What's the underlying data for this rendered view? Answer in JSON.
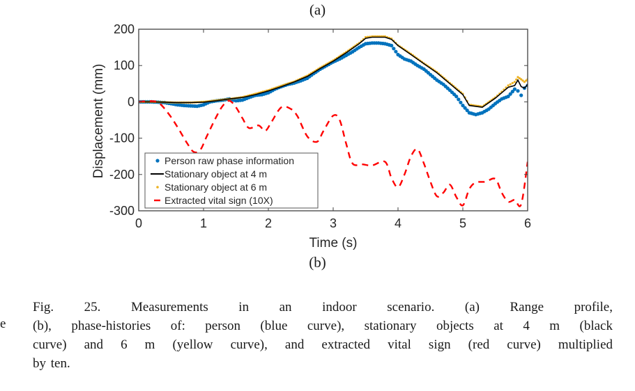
{
  "subfigure_labels": {
    "top": "(a)",
    "bottom": "(b)"
  },
  "stray_text": "e",
  "caption": {
    "lines": [
      "Fig. 25.      Measurements in an indoor scenario. (a) Range profile,",
      "(b), phase-histories of: person (blue curve), stationary objects at 4 m (black",
      "curve) and 6 m (yellow curve), and extracted vital sign (red curve) multiplied",
      "by ten."
    ]
  },
  "colors": {
    "person": "#0072BD",
    "stationary_4m": "#000000",
    "stationary_6m": "#EDB120",
    "vital_sign": "#FF0000",
    "axis": "#404040",
    "text": "#262626"
  },
  "chart_data": {
    "type": "line",
    "title": "",
    "xlabel": "Time (s)",
    "ylabel": "Displacement (mm)",
    "xlim": [
      0,
      6
    ],
    "ylim": [
      -300,
      200
    ],
    "xticks": [
      0,
      1,
      2,
      3,
      4,
      5,
      6
    ],
    "yticks": [
      -300,
      -200,
      -100,
      0,
      100,
      200
    ],
    "xtick_labels": [
      "0",
      "1",
      "2",
      "3",
      "4",
      "5",
      "6"
    ],
    "ytick_labels": [
      "-300",
      "-200",
      "-100",
      "0",
      "100",
      "200"
    ],
    "grid": false,
    "legend_position": "bottom-left",
    "series": [
      {
        "name": "Person raw phase information",
        "style": "dots",
        "color_key": "person",
        "x": [
          0,
          0.2,
          0.4,
          0.5,
          0.6,
          0.7,
          0.8,
          0.9,
          1.0,
          1.1,
          1.2,
          1.3,
          1.4,
          1.5,
          1.6,
          1.7,
          1.8,
          1.9,
          2.0,
          2.1,
          2.2,
          2.3,
          2.4,
          2.5,
          2.6,
          2.7,
          2.8,
          2.9,
          3.0,
          3.1,
          3.2,
          3.3,
          3.4,
          3.5,
          3.6,
          3.7,
          3.8,
          3.9,
          4.0,
          4.1,
          4.2,
          4.3,
          4.4,
          4.5,
          4.6,
          4.7,
          4.8,
          4.9,
          5.0,
          5.1,
          5.2,
          5.3,
          5.4,
          5.5,
          5.6,
          5.7,
          5.8,
          5.85,
          5.9,
          5.95,
          6.0
        ],
        "y": [
          0,
          0,
          -2,
          -5,
          -8,
          -10,
          -11,
          -12,
          -8,
          0,
          3,
          5,
          8,
          3,
          5,
          12,
          18,
          20,
          25,
          35,
          42,
          48,
          52,
          58,
          65,
          78,
          90,
          100,
          110,
          118,
          128,
          138,
          150,
          160,
          162,
          162,
          160,
          155,
          130,
          118,
          112,
          100,
          90,
          75,
          60,
          48,
          32,
          15,
          -10,
          -30,
          -35,
          -30,
          -20,
          -5,
          8,
          15,
          35,
          30,
          18,
          38,
          45
        ]
      },
      {
        "name": "Stationary object at 4 m",
        "style": "solid",
        "color_key": "stationary_4m",
        "x": [
          0,
          0.2,
          0.4,
          0.6,
          0.8,
          1.0,
          1.2,
          1.4,
          1.6,
          1.8,
          2.0,
          2.2,
          2.4,
          2.6,
          2.8,
          3.0,
          3.2,
          3.4,
          3.5,
          3.6,
          3.8,
          3.9,
          4.0,
          4.2,
          4.4,
          4.6,
          4.8,
          5.0,
          5.1,
          5.3,
          5.5,
          5.6,
          5.7,
          5.8,
          5.85,
          5.9,
          5.95,
          6.0
        ],
        "y": [
          0,
          0,
          -1,
          -2,
          -2,
          -1,
          3,
          8,
          12,
          20,
          30,
          42,
          55,
          70,
          92,
          112,
          135,
          160,
          175,
          178,
          178,
          172,
          155,
          130,
          105,
          80,
          50,
          20,
          -10,
          -15,
          10,
          25,
          40,
          45,
          60,
          42,
          38,
          48
        ]
      },
      {
        "name": "Stationary object at 6 m",
        "style": "dots",
        "color_key": "stationary_6m",
        "x": [
          0,
          0.2,
          0.4,
          0.6,
          0.8,
          1.0,
          1.2,
          1.4,
          1.6,
          1.8,
          2.0,
          2.2,
          2.4,
          2.6,
          2.8,
          3.0,
          3.2,
          3.4,
          3.5,
          3.6,
          3.8,
          3.9,
          4.0,
          4.2,
          4.4,
          4.6,
          4.8,
          5.0,
          5.1,
          5.3,
          5.5,
          5.6,
          5.7,
          5.8,
          5.85,
          5.9,
          5.95,
          6.0
        ],
        "y": [
          0,
          0,
          -1,
          -2,
          -2,
          0,
          4,
          8,
          13,
          22,
          32,
          44,
          56,
          72,
          94,
          114,
          137,
          162,
          178,
          180,
          180,
          174,
          156,
          132,
          106,
          82,
          52,
          22,
          -8,
          -13,
          12,
          28,
          45,
          55,
          68,
          62,
          55,
          62
        ]
      },
      {
        "name": "Extracted vital sign (10X)",
        "style": "dashed",
        "color_key": "vital_sign",
        "x": [
          0,
          0.15,
          0.3,
          0.45,
          0.6,
          0.75,
          0.85,
          0.95,
          1.05,
          1.2,
          1.3,
          1.4,
          1.5,
          1.6,
          1.7,
          1.85,
          1.95,
          2.05,
          2.2,
          2.35,
          2.45,
          2.6,
          2.75,
          2.85,
          3.0,
          3.1,
          3.2,
          3.3,
          3.45,
          3.6,
          3.8,
          3.9,
          4.0,
          4.1,
          4.2,
          4.3,
          4.4,
          4.5,
          4.6,
          4.7,
          4.8,
          4.9,
          5.0,
          5.1,
          5.2,
          5.35,
          5.5,
          5.6,
          5.7,
          5.8,
          5.9,
          6.0
        ],
        "y": [
          0,
          2,
          -2,
          -30,
          -70,
          -115,
          -138,
          -132,
          -95,
          -40,
          -10,
          3,
          -15,
          -45,
          -72,
          -65,
          -80,
          -55,
          -15,
          -20,
          -40,
          -95,
          -110,
          -80,
          -38,
          -50,
          -115,
          -170,
          -172,
          -175,
          -165,
          -210,
          -235,
          -200,
          -150,
          -130,
          -170,
          -220,
          -260,
          -250,
          -228,
          -262,
          -285,
          -240,
          -222,
          -220,
          -212,
          -250,
          -275,
          -270,
          -282,
          -165
        ]
      }
    ]
  }
}
